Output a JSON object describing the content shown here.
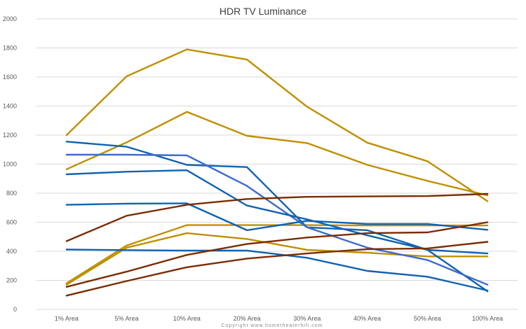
{
  "chart_data": {
    "type": "line",
    "title": "HDR TV Luminance",
    "xlabel": "",
    "ylabel": "",
    "categories": [
      "1% Area",
      "5% Area",
      "10% Area",
      "20% Area",
      "30% Area",
      "40% Area",
      "50% Area",
      "100% Area"
    ],
    "ylim": [
      0,
      2000
    ],
    "yticks": [
      "0",
      "200",
      "400",
      "600",
      "800",
      "1000",
      "1200",
      "1400",
      "1600",
      "1800",
      "2000"
    ],
    "grid": true,
    "legend": "none",
    "series": [
      {
        "color": "#BF9000",
        "values": [
          1200,
          1605,
          1790,
          1720,
          1395,
          1148,
          1020,
          745
        ]
      },
      {
        "color": "#BF9000",
        "values": [
          965,
          1150,
          1360,
          1195,
          1145,
          995,
          885,
          785
        ]
      },
      {
        "color": "#BF9000",
        "values": [
          180,
          440,
          580,
          580,
          580,
          578,
          578,
          578
        ]
      },
      {
        "color": "#BF9000",
        "values": [
          170,
          425,
          525,
          485,
          410,
          390,
          365,
          365
        ]
      },
      {
        "color": "#0F63B0",
        "values": [
          1155,
          1120,
          995,
          980,
          565,
          545,
          410,
          125
        ]
      },
      {
        "color": "#3E6BC9",
        "values": [
          1065,
          1065,
          1060,
          850,
          565,
          425,
          340,
          170
        ]
      },
      {
        "color": "#0F63B0",
        "values": [
          930,
          948,
          958,
          715,
          620,
          510,
          410,
          385
        ]
      },
      {
        "color": "#0F63B0",
        "values": [
          720,
          728,
          730,
          545,
          610,
          588,
          588,
          548
        ]
      },
      {
        "color": "#0F63B0",
        "values": [
          412,
          408,
          405,
          405,
          355,
          265,
          225,
          130
        ]
      },
      {
        "color": "#7B2C00",
        "values": [
          470,
          645,
          720,
          760,
          775,
          778,
          780,
          795
        ]
      },
      {
        "color": "#7B2C00",
        "values": [
          155,
          260,
          375,
          450,
          495,
          525,
          530,
          600
        ]
      },
      {
        "color": "#7B2C00",
        "values": [
          95,
          195,
          290,
          350,
          385,
          415,
          420,
          465
        ]
      }
    ]
  },
  "footer": {
    "copyright": "Copyright www.hometheaterhifi.com"
  }
}
